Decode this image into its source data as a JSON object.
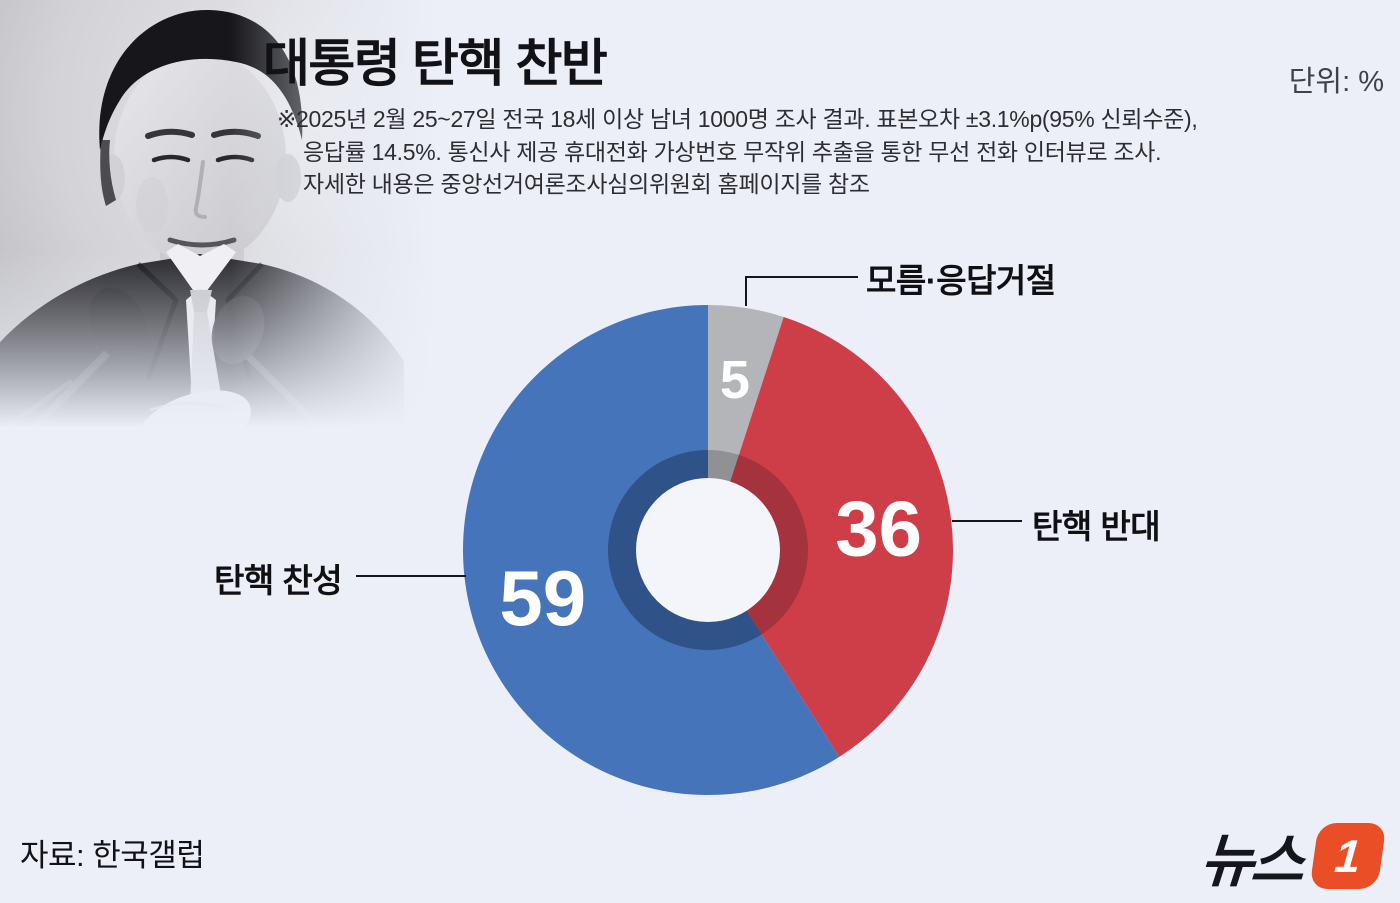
{
  "page": {
    "background": "#ECEFF8",
    "title": "대통령 탄핵 찬반",
    "unit_label": "단위: %",
    "note_lines": [
      "※2025년 2월 25~27일 전국 18세 이상 남녀 1000명 조사 결과. 표본오차 ±3.1%p(95% 신뢰수준),",
      "응답률 14.5%. 통신사 제공 휴대전화 가상번호 무작위 추출을 통한 무선 전화 인터뷰로 조사.",
      "자세한 내용은 중앙선거여론조사심의위원회 홈페이지를 참조"
    ],
    "source_label": "자료: 한국갤럽",
    "logo": {
      "text": "뉴스",
      "mark": "1",
      "color": "#E94E26"
    }
  },
  "chart_data": {
    "type": "pie",
    "variant": "donut",
    "title": "대통령 탄핵 찬반",
    "unit": "%",
    "start_angle_deg": 0,
    "direction": "clockwise",
    "slices": [
      {
        "label": "모름·응답거절",
        "value": 5,
        "color": "#B4B5B8",
        "inner_ring_color": "#8F9195"
      },
      {
        "label": "탄핵 반대",
        "value": 36,
        "color": "#CD3E49",
        "inner_ring_color": "#A4333E"
      },
      {
        "label": "탄핵 찬성",
        "value": 59,
        "color": "#4574BB",
        "inner_ring_color": "#2F5289"
      }
    ],
    "hole_color": "#F3F5FA",
    "value_label_color": "#FFFFFF",
    "legend_position": "callouts-outside",
    "source": "한국갤럽"
  }
}
